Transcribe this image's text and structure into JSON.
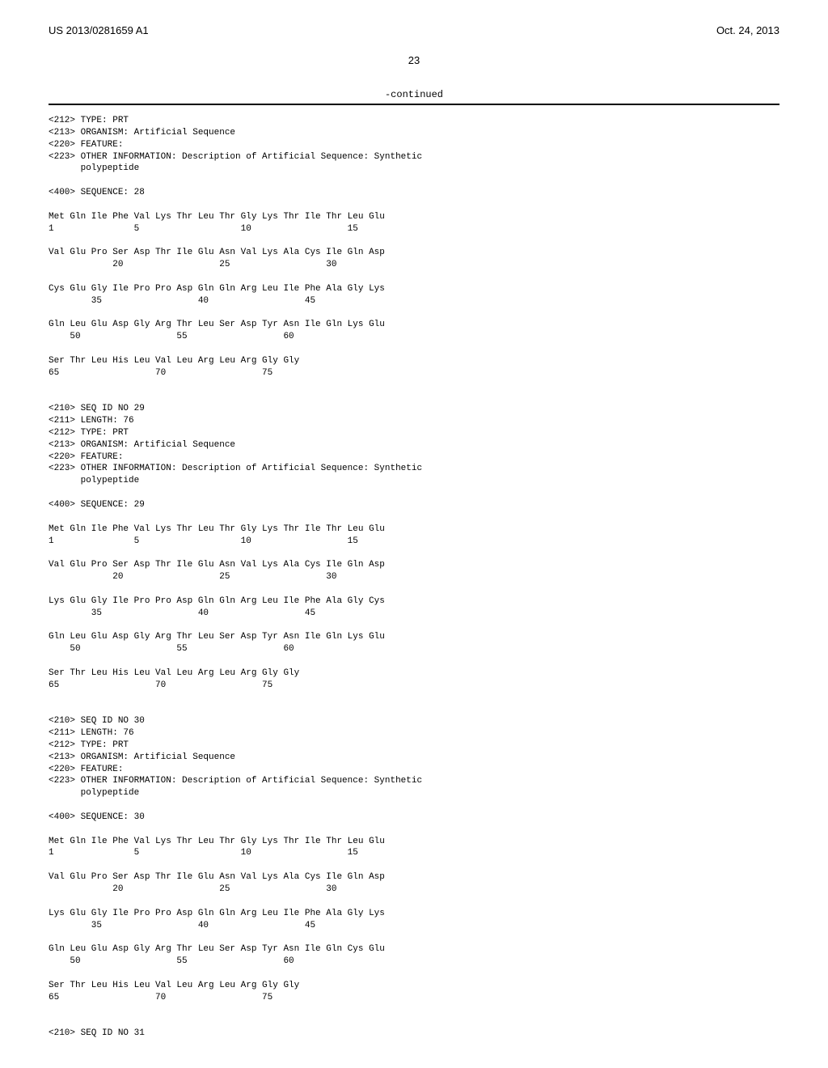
{
  "header": {
    "patent_number": "US 2013/0281659 A1",
    "date": "Oct. 24, 2013"
  },
  "page_number": "23",
  "continued_label": "-continued",
  "seq28": {
    "meta_type": "<212> TYPE: PRT",
    "meta_organism": "<213> ORGANISM: Artificial Sequence",
    "meta_feature": "<220> FEATURE:",
    "meta_info": "<223> OTHER INFORMATION: Description of Artificial Sequence: Synthetic",
    "meta_info2": "      polypeptide",
    "seq_header": "<400> SEQUENCE: 28",
    "line1": "Met Gln Ile Phe Val Lys Thr Leu Thr Gly Lys Thr Ile Thr Leu Glu",
    "nums1": "1               5                   10                  15",
    "line2": "Val Glu Pro Ser Asp Thr Ile Glu Asn Val Lys Ala Cys Ile Gln Asp",
    "nums2": "            20                  25                  30",
    "line3": "Cys Glu Gly Ile Pro Pro Asp Gln Gln Arg Leu Ile Phe Ala Gly Lys",
    "nums3": "        35                  40                  45",
    "line4": "Gln Leu Glu Asp Gly Arg Thr Leu Ser Asp Tyr Asn Ile Gln Lys Glu",
    "nums4": "    50                  55                  60",
    "line5": "Ser Thr Leu His Leu Val Leu Arg Leu Arg Gly Gly",
    "nums5": "65                  70                  75"
  },
  "seq29": {
    "id": "<210> SEQ ID NO 29",
    "length": "<211> LENGTH: 76",
    "meta_type": "<212> TYPE: PRT",
    "meta_organism": "<213> ORGANISM: Artificial Sequence",
    "meta_feature": "<220> FEATURE:",
    "meta_info": "<223> OTHER INFORMATION: Description of Artificial Sequence: Synthetic",
    "meta_info2": "      polypeptide",
    "seq_header": "<400> SEQUENCE: 29",
    "line1": "Met Gln Ile Phe Val Lys Thr Leu Thr Gly Lys Thr Ile Thr Leu Glu",
    "nums1": "1               5                   10                  15",
    "line2": "Val Glu Pro Ser Asp Thr Ile Glu Asn Val Lys Ala Cys Ile Gln Asp",
    "nums2": "            20                  25                  30",
    "line3": "Lys Glu Gly Ile Pro Pro Asp Gln Gln Arg Leu Ile Phe Ala Gly Cys",
    "nums3": "        35                  40                  45",
    "line4": "Gln Leu Glu Asp Gly Arg Thr Leu Ser Asp Tyr Asn Ile Gln Lys Glu",
    "nums4": "    50                  55                  60",
    "line5": "Ser Thr Leu His Leu Val Leu Arg Leu Arg Gly Gly",
    "nums5": "65                  70                  75"
  },
  "seq30": {
    "id": "<210> SEQ ID NO 30",
    "length": "<211> LENGTH: 76",
    "meta_type": "<212> TYPE: PRT",
    "meta_organism": "<213> ORGANISM: Artificial Sequence",
    "meta_feature": "<220> FEATURE:",
    "meta_info": "<223> OTHER INFORMATION: Description of Artificial Sequence: Synthetic",
    "meta_info2": "      polypeptide",
    "seq_header": "<400> SEQUENCE: 30",
    "line1": "Met Gln Ile Phe Val Lys Thr Leu Thr Gly Lys Thr Ile Thr Leu Glu",
    "nums1": "1               5                   10                  15",
    "line2": "Val Glu Pro Ser Asp Thr Ile Glu Asn Val Lys Ala Cys Ile Gln Asp",
    "nums2": "            20                  25                  30",
    "line3": "Lys Glu Gly Ile Pro Pro Asp Gln Gln Arg Leu Ile Phe Ala Gly Lys",
    "nums3": "        35                  40                  45",
    "line4": "Gln Leu Glu Asp Gly Arg Thr Leu Ser Asp Tyr Asn Ile Gln Cys Glu",
    "nums4": "    50                  55                  60",
    "line5": "Ser Thr Leu His Leu Val Leu Arg Leu Arg Gly Gly",
    "nums5": "65                  70                  75"
  },
  "seq31": {
    "id": "<210> SEQ ID NO 31"
  }
}
